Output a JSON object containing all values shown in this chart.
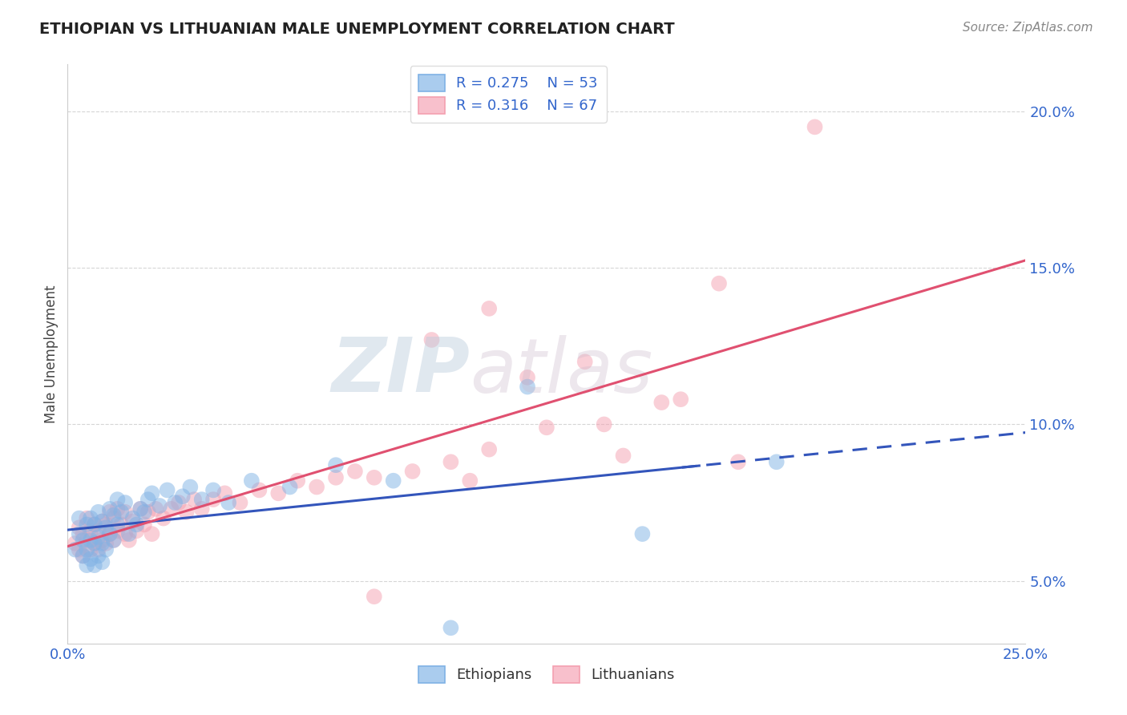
{
  "title": "ETHIOPIAN VS LITHUANIAN MALE UNEMPLOYMENT CORRELATION CHART",
  "source_text": "Source: ZipAtlas.com",
  "ylabel": "Male Unemployment",
  "xlim": [
    0.0,
    0.25
  ],
  "ylim": [
    0.03,
    0.215
  ],
  "background_color": "#ffffff",
  "grid_color": "#cccccc",
  "legend_R1": "R = 0.275",
  "legend_N1": "N = 53",
  "legend_R2": "R = 0.316",
  "legend_N2": "N = 67",
  "color_blue": "#7fb2e5",
  "color_pink": "#f4a0b0",
  "line_blue": "#3355bb",
  "line_pink": "#e05070",
  "eth_x": [
    0.002,
    0.003,
    0.003,
    0.004,
    0.004,
    0.005,
    0.005,
    0.005,
    0.006,
    0.006,
    0.006,
    0.007,
    0.007,
    0.007,
    0.008,
    0.008,
    0.008,
    0.009,
    0.009,
    0.009,
    0.01,
    0.01,
    0.011,
    0.011,
    0.012,
    0.012,
    0.013,
    0.013,
    0.014,
    0.015,
    0.016,
    0.017,
    0.018,
    0.019,
    0.02,
    0.021,
    0.022,
    0.024,
    0.026,
    0.028,
    0.03,
    0.032,
    0.035,
    0.038,
    0.042,
    0.048,
    0.058,
    0.07,
    0.085,
    0.1,
    0.12,
    0.15,
    0.185
  ],
  "eth_y": [
    0.06,
    0.065,
    0.07,
    0.058,
    0.063,
    0.055,
    0.06,
    0.068,
    0.057,
    0.063,
    0.07,
    0.055,
    0.062,
    0.068,
    0.058,
    0.064,
    0.072,
    0.056,
    0.062,
    0.069,
    0.06,
    0.067,
    0.065,
    0.073,
    0.063,
    0.071,
    0.068,
    0.076,
    0.072,
    0.075,
    0.065,
    0.07,
    0.068,
    0.073,
    0.072,
    0.076,
    0.078,
    0.074,
    0.079,
    0.075,
    0.077,
    0.08,
    0.076,
    0.079,
    0.075,
    0.082,
    0.08,
    0.087,
    0.082,
    0.035,
    0.112,
    0.065,
    0.088
  ],
  "lit_x": [
    0.002,
    0.003,
    0.003,
    0.004,
    0.004,
    0.005,
    0.005,
    0.006,
    0.006,
    0.007,
    0.007,
    0.008,
    0.008,
    0.009,
    0.009,
    0.01,
    0.01,
    0.011,
    0.011,
    0.012,
    0.012,
    0.013,
    0.013,
    0.014,
    0.015,
    0.015,
    0.016,
    0.017,
    0.018,
    0.019,
    0.02,
    0.021,
    0.022,
    0.023,
    0.025,
    0.027,
    0.029,
    0.031,
    0.033,
    0.035,
    0.038,
    0.041,
    0.045,
    0.05,
    0.055,
    0.06,
    0.065,
    0.07,
    0.075,
    0.08,
    0.09,
    0.1,
    0.11,
    0.125,
    0.14,
    0.155,
    0.17,
    0.095,
    0.11,
    0.12,
    0.135,
    0.145,
    0.16,
    0.175,
    0.105,
    0.08,
    0.195
  ],
  "lit_y": [
    0.062,
    0.06,
    0.067,
    0.058,
    0.065,
    0.063,
    0.07,
    0.06,
    0.066,
    0.062,
    0.068,
    0.06,
    0.066,
    0.063,
    0.069,
    0.062,
    0.068,
    0.065,
    0.072,
    0.063,
    0.07,
    0.066,
    0.073,
    0.068,
    0.065,
    0.072,
    0.063,
    0.069,
    0.066,
    0.073,
    0.068,
    0.072,
    0.065,
    0.073,
    0.07,
    0.073,
    0.075,
    0.072,
    0.076,
    0.073,
    0.076,
    0.078,
    0.075,
    0.079,
    0.078,
    0.082,
    0.08,
    0.083,
    0.085,
    0.083,
    0.085,
    0.088,
    0.092,
    0.099,
    0.1,
    0.107,
    0.145,
    0.127,
    0.137,
    0.115,
    0.12,
    0.09,
    0.108,
    0.088,
    0.082,
    0.045,
    0.195
  ]
}
